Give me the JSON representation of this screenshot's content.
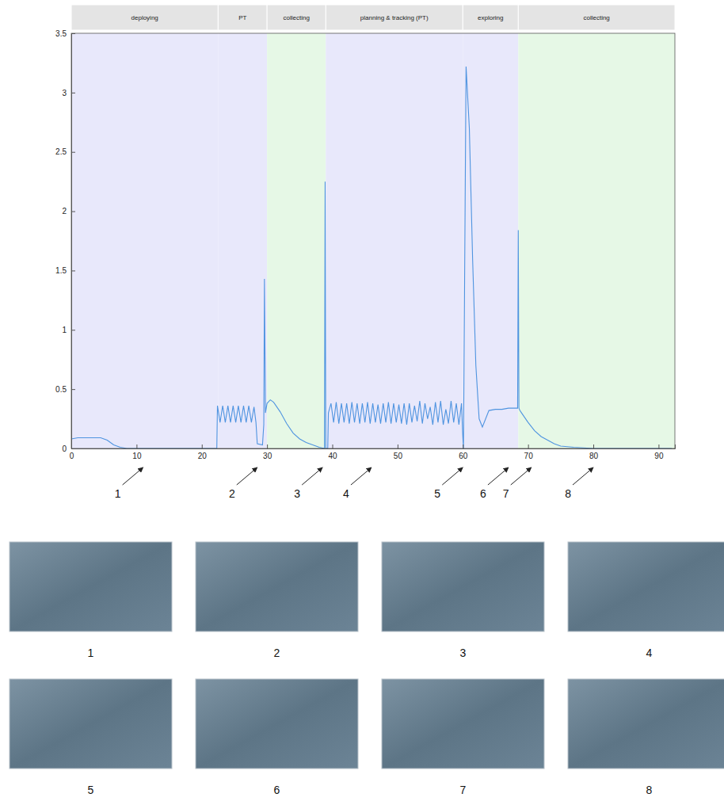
{
  "chart_data": {
    "type": "line",
    "color": "#4f94e0",
    "xlim": [
      0,
      92.5
    ],
    "ylim": [
      0,
      3.5
    ],
    "xticks": [
      0,
      10,
      20,
      30,
      40,
      50,
      60,
      70,
      80,
      90
    ],
    "yticks": [
      0,
      0.5,
      1,
      1.5,
      2,
      2.5,
      3,
      3.5
    ],
    "grid": false,
    "phases": [
      {
        "label": "deploying",
        "start": 0,
        "end": 22.5,
        "color": "#e8e8fb"
      },
      {
        "label": "PT",
        "start": 22.5,
        "end": 30,
        "color": "#e8e8fb"
      },
      {
        "label": "collecting",
        "start": 30,
        "end": 39,
        "color": "#e6f8e6"
      },
      {
        "label": "planning & tracking (PT)",
        "start": 39,
        "end": 60,
        "color": "#e8e8fb"
      },
      {
        "label": "exploring",
        "start": 60,
        "end": 68.5,
        "color": "#e8e8fb"
      },
      {
        "label": "collecting",
        "start": 68.5,
        "end": 92.5,
        "color": "#e6f8e6"
      }
    ],
    "annotations": [
      {
        "label": "1",
        "x": 11
      },
      {
        "label": "2",
        "x": 28.5
      },
      {
        "label": "3",
        "x": 38.5
      },
      {
        "label": "4",
        "x": 46
      },
      {
        "label": "5",
        "x": 60
      },
      {
        "label": "6",
        "x": 67
      },
      {
        "label": "7",
        "x": 70.5
      },
      {
        "label": "8",
        "x": 80
      }
    ],
    "images": [
      "1",
      "2",
      "3",
      "4",
      "5",
      "6",
      "7",
      "8"
    ],
    "x": [
      0,
      1,
      4.5,
      5.5,
      6.5,
      7.5,
      8.5,
      22.3,
      22.4,
      22.8,
      23.2,
      23.6,
      24.0,
      24.4,
      24.8,
      25.2,
      25.6,
      26.0,
      26.4,
      26.8,
      27.2,
      27.6,
      28.0,
      28.3,
      28.5,
      29.3,
      29.5,
      29.6,
      29.75,
      30,
      30.5,
      31,
      32,
      33,
      34,
      35,
      36,
      37,
      38,
      38.8,
      38.9,
      39.0,
      39.3,
      39.4,
      39.8,
      40.2,
      40.6,
      41.0,
      41.4,
      41.8,
      42.2,
      42.6,
      43.0,
      43.4,
      43.8,
      44.2,
      44.6,
      45.0,
      45.4,
      45.8,
      46.2,
      46.6,
      47.0,
      47.4,
      47.8,
      48.2,
      48.6,
      49.0,
      49.4,
      49.8,
      50.2,
      50.6,
      51.0,
      51.4,
      51.8,
      52.2,
      52.6,
      53.0,
      53.4,
      53.8,
      54.2,
      54.6,
      55.0,
      55.4,
      55.8,
      56.2,
      56.6,
      57.0,
      57.4,
      57.8,
      58.2,
      58.6,
      59.0,
      59.4,
      59.8,
      60.0,
      60.1,
      60.5,
      61,
      61.5,
      62,
      62.5,
      63,
      63.5,
      64,
      65,
      66,
      67,
      68.4,
      68.5,
      68.6,
      68.75,
      69,
      70,
      71,
      72,
      73,
      74,
      75,
      77,
      80,
      92
    ],
    "values": [
      0.08,
      0.09,
      0.09,
      0.07,
      0.03,
      0.01,
      0,
      0,
      0.36,
      0.22,
      0.36,
      0.22,
      0.36,
      0.22,
      0.36,
      0.22,
      0.36,
      0.22,
      0.36,
      0.22,
      0.36,
      0.22,
      0.35,
      0.22,
      0.04,
      0.03,
      0.2,
      1.43,
      0.3,
      0.38,
      0.41,
      0.39,
      0.31,
      0.21,
      0.13,
      0.08,
      0.05,
      0.03,
      0.01,
      0,
      2.25,
      0,
      0,
      0.3,
      0.38,
      0.22,
      0.39,
      0.21,
      0.38,
      0.22,
      0.38,
      0.21,
      0.39,
      0.22,
      0.38,
      0.21,
      0.38,
      0.22,
      0.39,
      0.21,
      0.38,
      0.22,
      0.37,
      0.21,
      0.38,
      0.22,
      0.39,
      0.21,
      0.38,
      0.22,
      0.37,
      0.21,
      0.38,
      0.2,
      0.38,
      0.22,
      0.36,
      0.23,
      0.4,
      0.21,
      0.38,
      0.25,
      0.35,
      0.2,
      0.39,
      0.22,
      0.4,
      0.2,
      0.33,
      0.21,
      0.4,
      0.22,
      0.38,
      0.2,
      0.38,
      0.1,
      0,
      3.22,
      2.7,
      1.6,
      0.7,
      0.25,
      0.18,
      0.25,
      0.32,
      0.33,
      0.33,
      0.34,
      0.34,
      1.84,
      0.34,
      0.32,
      0.3,
      0.22,
      0.15,
      0.1,
      0.07,
      0.04,
      0.02,
      0.01,
      0,
      0
    ]
  }
}
